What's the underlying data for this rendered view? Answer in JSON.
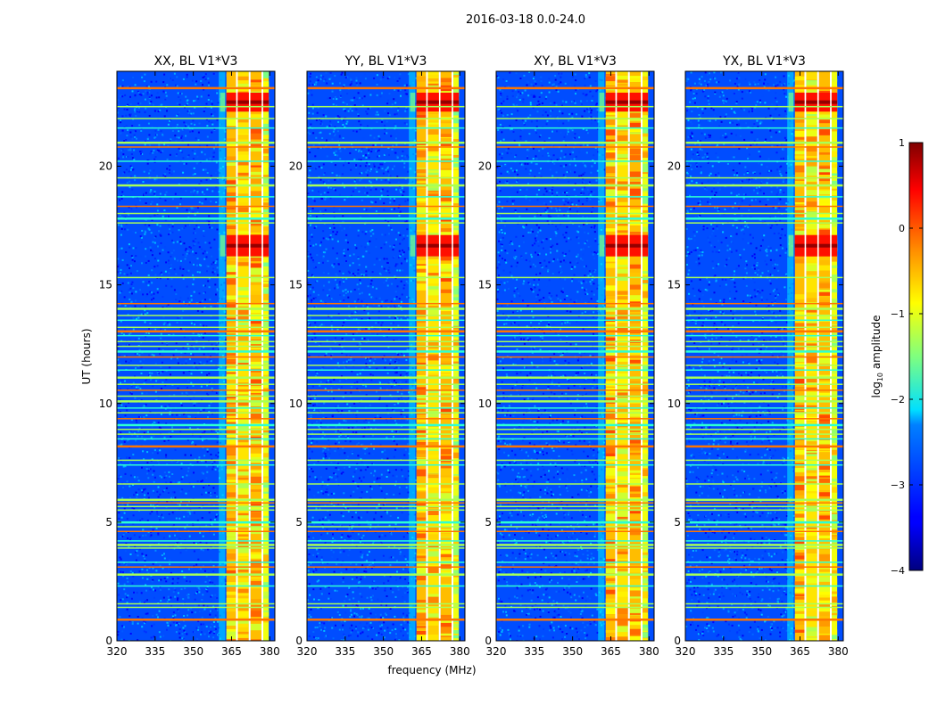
{
  "chart_data": {
    "type": "heatmap",
    "suptitle": "2016-03-18 0.0-24.0",
    "xlabel": "frequency (MHz)",
    "ylabel": "UT (hours)",
    "xlim": [
      320,
      382
    ],
    "ylim": [
      0,
      24
    ],
    "xticks": [
      {
        "value": 320,
        "label": "320"
      },
      {
        "value": 335,
        "label": "335"
      },
      {
        "value": 350,
        "label": "350"
      },
      {
        "value": 365,
        "label": "365"
      },
      {
        "value": 380,
        "label": "380"
      }
    ],
    "yticks": [
      {
        "value": 0,
        "label": "0"
      },
      {
        "value": 5,
        "label": "5"
      },
      {
        "value": 10,
        "label": "10"
      },
      {
        "value": 15,
        "label": "15"
      },
      {
        "value": 20,
        "label": "20"
      }
    ],
    "panels": [
      {
        "title": "XX, BL V1*V3",
        "pol": "XX"
      },
      {
        "title": "YY, BL V1*V3",
        "pol": "YY"
      },
      {
        "title": "XY, BL V1*V3",
        "pol": "XY"
      },
      {
        "title": "YX, BL V1*V3",
        "pol": "YX"
      }
    ],
    "colorbar": {
      "label": "log10 amplitude",
      "label_main": "log",
      "label_sub": "10",
      "label_rest": " amplitude",
      "range": [
        -4,
        1
      ],
      "ticks": [
        {
          "value": 1,
          "label": "1"
        },
        {
          "value": 0,
          "label": "0"
        },
        {
          "value": -1,
          "label": "−1"
        },
        {
          "value": -2,
          "label": "−2"
        },
        {
          "value": -3,
          "label": "−3"
        },
        {
          "value": -4,
          "label": "−4"
        }
      ],
      "colormap": "jet"
    },
    "background_level": -3.0,
    "signal_band_mhz": [
      362.5,
      379.5
    ],
    "signal_channels_mhz": [
      {
        "start": 363.0,
        "end": 366.8,
        "level": -0.55
      },
      {
        "start": 367.4,
        "end": 371.8,
        "level": -0.75
      },
      {
        "start": 372.4,
        "end": 376.8,
        "level": -0.55
      },
      {
        "start": 377.4,
        "end": 379.6,
        "level": -0.95
      }
    ],
    "channel_gaps_mhz": [
      367.1,
      372.1,
      377.1
    ],
    "strong_events_hours": [
      {
        "start": 22.3,
        "end": 23.1,
        "level": 0.3
      },
      {
        "start": 16.2,
        "end": 17.1,
        "level": 0.3
      }
    ],
    "rfi_lines_hours": [
      0.9,
      1.4,
      1.55,
      2.3,
      2.8,
      3.1,
      3.3,
      3.9,
      4.05,
      4.2,
      4.6,
      4.8,
      5.0,
      5.5,
      5.65,
      5.8,
      5.95,
      6.6,
      7.4,
      7.6,
      8.2,
      8.5,
      8.7,
      8.9,
      9.1,
      9.35,
      9.6,
      9.8,
      10.1,
      10.3,
      10.55,
      10.8,
      11.1,
      11.4,
      11.6,
      11.95,
      12.2,
      12.4,
      12.6,
      12.85,
      13.05,
      13.2,
      13.5,
      13.7,
      14.0,
      14.2,
      15.3,
      17.6,
      17.8,
      18.0,
      18.3,
      18.7,
      19.2,
      19.5,
      20.2,
      20.8,
      21.0,
      21.6,
      22.0,
      22.5,
      23.3
    ]
  }
}
